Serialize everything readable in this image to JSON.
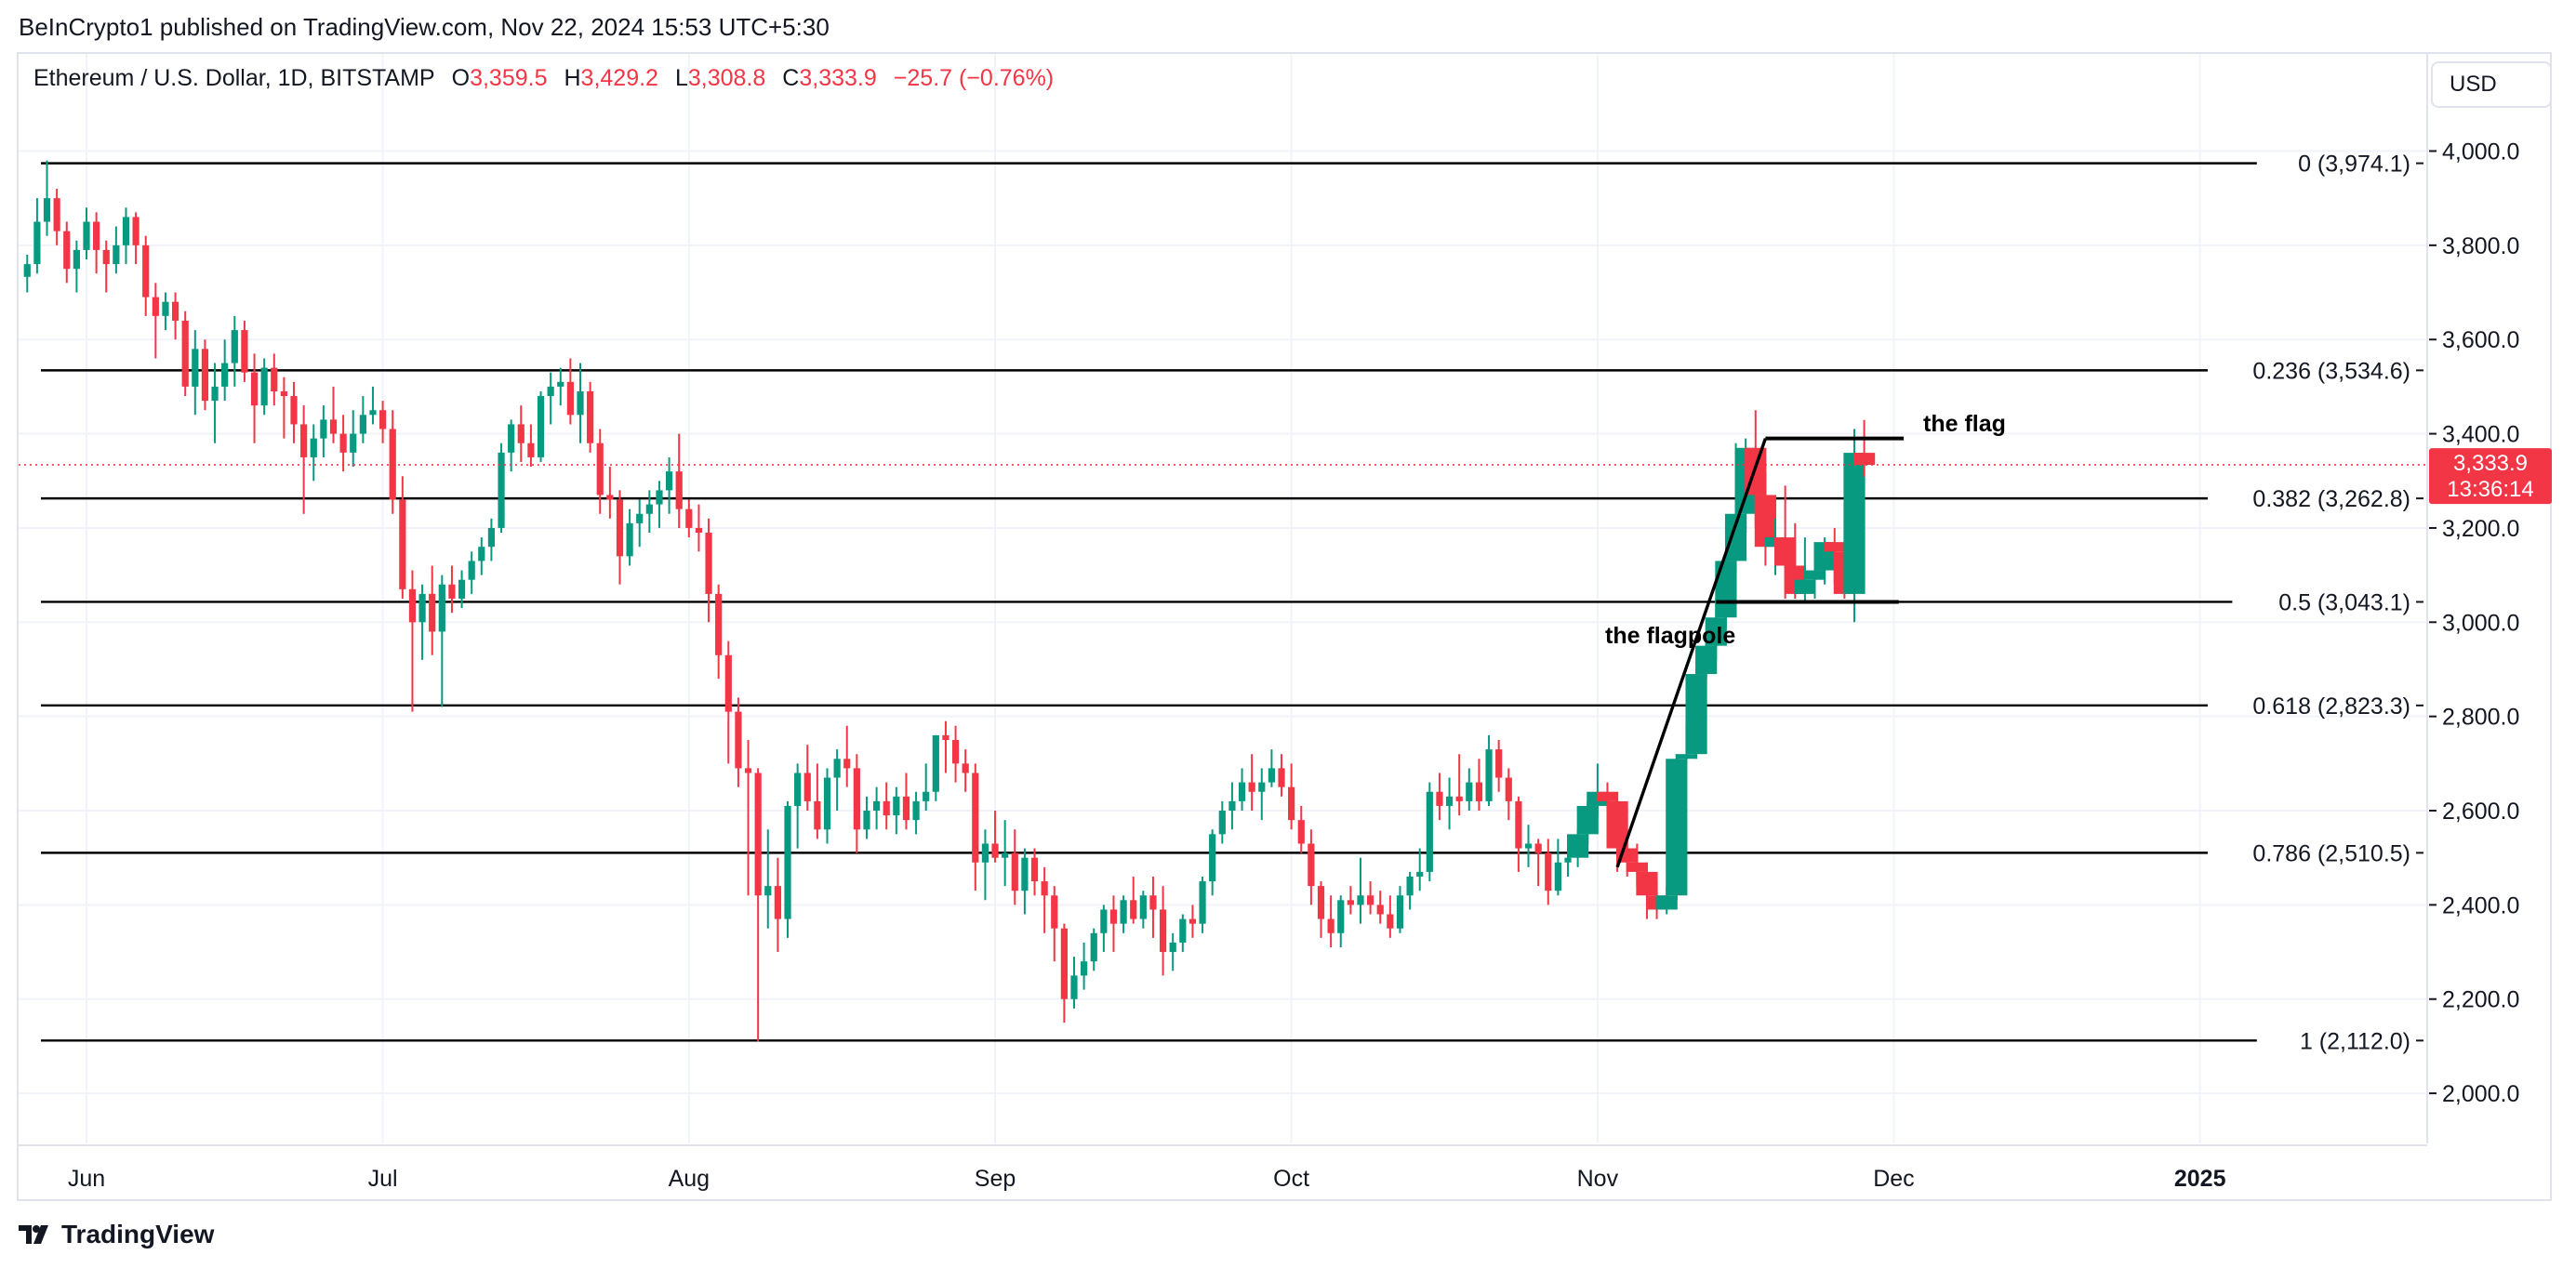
{
  "header": {
    "publisher": "BeInCrypto1 published on TradingView.com, Nov 22, 2024 15:53 UTC+5:30"
  },
  "legend": {
    "symbol": "Ethereum / U.S. Dollar, 1D, BITSTAMP",
    "open_label": "O",
    "open": "3,359.5",
    "high_label": "H",
    "high": "3,429.2",
    "low_label": "L",
    "low": "3,308.8",
    "close_label": "C",
    "close": "3,333.9",
    "change": "−25.7 (−0.76%)"
  },
  "currency_button": "USD",
  "footer": {
    "brand": "TradingView"
  },
  "colors": {
    "up": "#089981",
    "down": "#f23645",
    "grid": "#f0f3fa",
    "fib_line": "#000000"
  },
  "chart_data": {
    "type": "candlestick",
    "ylim": [
      1900,
      4100
    ],
    "y_ticks": [
      "2,000.0",
      "2,200.0",
      "2,400.0",
      "2,600.0",
      "2,800.0",
      "3,000.0",
      "3,200.0",
      "3,400.0",
      "3,600.0",
      "3,800.0",
      "4,000.0"
    ],
    "x_ticks": [
      {
        "label": "Jun",
        "day": 0
      },
      {
        "label": "Jul",
        "day": 30
      },
      {
        "label": "Aug",
        "day": 61
      },
      {
        "label": "Sep",
        "day": 92
      },
      {
        "label": "Oct",
        "day": 122
      },
      {
        "label": "Nov",
        "day": 153
      },
      {
        "label": "Dec",
        "day": 183
      },
      {
        "label": "2025",
        "day": 214
      }
    ],
    "first_day": -6,
    "candles": [
      [
        3733,
        3780,
        3700,
        3760
      ],
      [
        3760,
        3900,
        3740,
        3850
      ],
      [
        3850,
        3980,
        3820,
        3900
      ],
      [
        3900,
        3920,
        3800,
        3830
      ],
      [
        3830,
        3850,
        3720,
        3750
      ],
      [
        3750,
        3810,
        3700,
        3790
      ],
      [
        3790,
        3880,
        3770,
        3850
      ],
      [
        3850,
        3870,
        3740,
        3790
      ],
      [
        3790,
        3810,
        3700,
        3760
      ],
      [
        3760,
        3840,
        3740,
        3800
      ],
      [
        3800,
        3880,
        3760,
        3860
      ],
      [
        3860,
        3870,
        3760,
        3800
      ],
      [
        3800,
        3820,
        3650,
        3690
      ],
      [
        3690,
        3720,
        3560,
        3650
      ],
      [
        3650,
        3700,
        3620,
        3680
      ],
      [
        3680,
        3700,
        3600,
        3640
      ],
      [
        3640,
        3660,
        3480,
        3500
      ],
      [
        3500,
        3620,
        3440,
        3580
      ],
      [
        3580,
        3600,
        3450,
        3470
      ],
      [
        3470,
        3550,
        3380,
        3500
      ],
      [
        3500,
        3600,
        3470,
        3550
      ],
      [
        3550,
        3650,
        3500,
        3620
      ],
      [
        3620,
        3640,
        3510,
        3530
      ],
      [
        3530,
        3570,
        3380,
        3460
      ],
      [
        3460,
        3560,
        3440,
        3540
      ],
      [
        3540,
        3570,
        3460,
        3490
      ],
      [
        3490,
        3520,
        3390,
        3480
      ],
      [
        3480,
        3510,
        3380,
        3420
      ],
      [
        3420,
        3460,
        3230,
        3350
      ],
      [
        3350,
        3420,
        3300,
        3390
      ],
      [
        3390,
        3460,
        3350,
        3430
      ],
      [
        3430,
        3500,
        3380,
        3400
      ],
      [
        3400,
        3440,
        3320,
        3360
      ],
      [
        3360,
        3450,
        3330,
        3400
      ],
      [
        3400,
        3480,
        3380,
        3440
      ],
      [
        3440,
        3500,
        3420,
        3450
      ],
      [
        3450,
        3470,
        3380,
        3410
      ],
      [
        3410,
        3450,
        3230,
        3260
      ],
      [
        3260,
        3310,
        3050,
        3070
      ],
      [
        3070,
        3110,
        2810,
        3000
      ],
      [
        3000,
        3080,
        2920,
        3060
      ],
      [
        3060,
        3120,
        2930,
        2980
      ],
      [
        2980,
        3100,
        2820,
        3080
      ],
      [
        3080,
        3120,
        3020,
        3050
      ],
      [
        3050,
        3110,
        3030,
        3090
      ],
      [
        3090,
        3150,
        3060,
        3130
      ],
      [
        3130,
        3180,
        3100,
        3160
      ],
      [
        3160,
        3220,
        3130,
        3200
      ],
      [
        3200,
        3380,
        3190,
        3360
      ],
      [
        3360,
        3430,
        3320,
        3420
      ],
      [
        3420,
        3460,
        3340,
        3380
      ],
      [
        3380,
        3420,
        3330,
        3350
      ],
      [
        3350,
        3490,
        3340,
        3480
      ],
      [
        3480,
        3530,
        3420,
        3500
      ],
      [
        3500,
        3540,
        3460,
        3510
      ],
      [
        3510,
        3560,
        3420,
        3440
      ],
      [
        3440,
        3550,
        3380,
        3490
      ],
      [
        3490,
        3510,
        3360,
        3380
      ],
      [
        3380,
        3410,
        3230,
        3270
      ],
      [
        3270,
        3330,
        3220,
        3260
      ],
      [
        3260,
        3280,
        3080,
        3140
      ],
      [
        3140,
        3240,
        3120,
        3210
      ],
      [
        3210,
        3260,
        3160,
        3230
      ],
      [
        3230,
        3280,
        3190,
        3250
      ],
      [
        3250,
        3300,
        3200,
        3280
      ],
      [
        3280,
        3350,
        3230,
        3320
      ],
      [
        3320,
        3400,
        3200,
        3240
      ],
      [
        3240,
        3260,
        3180,
        3200
      ],
      [
        3200,
        3250,
        3150,
        3190
      ],
      [
        3190,
        3220,
        3000,
        3060
      ],
      [
        3060,
        3080,
        2880,
        2930
      ],
      [
        2930,
        2960,
        2700,
        2810
      ],
      [
        2810,
        2840,
        2650,
        2690
      ],
      [
        2690,
        2750,
        2420,
        2680
      ],
      [
        2680,
        2690,
        2110,
        2420
      ],
      [
        2420,
        2560,
        2350,
        2440
      ],
      [
        2440,
        2500,
        2300,
        2370
      ],
      [
        2370,
        2620,
        2330,
        2610
      ],
      [
        2610,
        2700,
        2520,
        2680
      ],
      [
        2680,
        2740,
        2600,
        2620
      ],
      [
        2620,
        2700,
        2540,
        2560
      ],
      [
        2560,
        2690,
        2530,
        2670
      ],
      [
        2670,
        2730,
        2600,
        2710
      ],
      [
        2710,
        2780,
        2650,
        2690
      ],
      [
        2690,
        2720,
        2510,
        2560
      ],
      [
        2560,
        2630,
        2540,
        2600
      ],
      [
        2600,
        2650,
        2560,
        2620
      ],
      [
        2620,
        2660,
        2560,
        2590
      ],
      [
        2590,
        2650,
        2550,
        2630
      ],
      [
        2630,
        2680,
        2560,
        2580
      ],
      [
        2580,
        2640,
        2550,
        2620
      ],
      [
        2620,
        2700,
        2600,
        2640
      ],
      [
        2640,
        2760,
        2620,
        2760
      ],
      [
        2760,
        2790,
        2680,
        2750
      ],
      [
        2750,
        2780,
        2660,
        2700
      ],
      [
        2700,
        2730,
        2640,
        2680
      ],
      [
        2680,
        2700,
        2430,
        2490
      ],
      [
        2490,
        2560,
        2410,
        2530
      ],
      [
        2530,
        2600,
        2490,
        2500
      ],
      [
        2500,
        2580,
        2440,
        2510
      ],
      [
        2510,
        2560,
        2400,
        2430
      ],
      [
        2430,
        2520,
        2380,
        2500
      ],
      [
        2500,
        2520,
        2420,
        2450
      ],
      [
        2450,
        2480,
        2340,
        2420
      ],
      [
        2420,
        2440,
        2280,
        2350
      ],
      [
        2350,
        2360,
        2150,
        2200
      ],
      [
        2200,
        2290,
        2180,
        2250
      ],
      [
        2250,
        2320,
        2220,
        2280
      ],
      [
        2280,
        2350,
        2260,
        2340
      ],
      [
        2340,
        2400,
        2300,
        2390
      ],
      [
        2390,
        2420,
        2300,
        2360
      ],
      [
        2360,
        2420,
        2340,
        2410
      ],
      [
        2410,
        2460,
        2360,
        2370
      ],
      [
        2370,
        2430,
        2350,
        2420
      ],
      [
        2420,
        2460,
        2330,
        2390
      ],
      [
        2390,
        2440,
        2250,
        2300
      ],
      [
        2300,
        2340,
        2260,
        2320
      ],
      [
        2320,
        2380,
        2300,
        2370
      ],
      [
        2370,
        2400,
        2330,
        2360
      ],
      [
        2360,
        2460,
        2340,
        2450
      ],
      [
        2450,
        2560,
        2420,
        2550
      ],
      [
        2550,
        2620,
        2530,
        2600
      ],
      [
        2600,
        2660,
        2560,
        2620
      ],
      [
        2620,
        2690,
        2600,
        2660
      ],
      [
        2660,
        2720,
        2600,
        2640
      ],
      [
        2640,
        2690,
        2580,
        2660
      ],
      [
        2660,
        2730,
        2650,
        2690
      ],
      [
        2690,
        2720,
        2630,
        2650
      ],
      [
        2650,
        2700,
        2560,
        2580
      ],
      [
        2580,
        2610,
        2510,
        2530
      ],
      [
        2530,
        2560,
        2400,
        2440
      ],
      [
        2440,
        2450,
        2330,
        2370
      ],
      [
        2370,
        2420,
        2310,
        2340
      ],
      [
        2340,
        2420,
        2310,
        2410
      ],
      [
        2410,
        2440,
        2380,
        2400
      ],
      [
        2400,
        2500,
        2360,
        2420
      ],
      [
        2420,
        2450,
        2380,
        2400
      ],
      [
        2400,
        2430,
        2360,
        2380
      ],
      [
        2380,
        2420,
        2330,
        2350
      ],
      [
        2350,
        2440,
        2340,
        2420
      ],
      [
        2420,
        2470,
        2390,
        2460
      ],
      [
        2460,
        2520,
        2430,
        2470
      ],
      [
        2470,
        2660,
        2450,
        2640
      ],
      [
        2640,
        2680,
        2580,
        2610
      ],
      [
        2610,
        2670,
        2560,
        2630
      ],
      [
        2630,
        2720,
        2590,
        2620
      ],
      [
        2620,
        2690,
        2600,
        2660
      ],
      [
        2660,
        2710,
        2600,
        2620
      ],
      [
        2620,
        2760,
        2610,
        2730
      ],
      [
        2730,
        2750,
        2640,
        2670
      ],
      [
        2670,
        2690,
        2580,
        2620
      ],
      [
        2620,
        2630,
        2470,
        2520
      ],
      [
        2520,
        2570,
        2480,
        2530
      ],
      [
        2530,
        2540,
        2440,
        2510
      ],
      [
        2510,
        2540,
        2400,
        2430
      ],
      [
        2430,
        2540,
        2420,
        2490
      ],
      [
        2490,
        2530,
        2460,
        2500
      ],
      [
        2500,
        2560,
        2480,
        2550
      ],
      [
        2550,
        2620,
        2530,
        2610
      ],
      [
        2610,
        2700,
        2590,
        2640
      ],
      [
        2640,
        2660,
        2580,
        2620
      ],
      [
        2620,
        2640,
        2470,
        2520
      ],
      [
        2520,
        2560,
        2460,
        2490
      ],
      [
        2490,
        2530,
        2440,
        2470
      ],
      [
        2470,
        2490,
        2370,
        2420
      ],
      [
        2420,
        2450,
        2370,
        2390
      ],
      [
        2390,
        2440,
        2380,
        2420
      ],
      [
        2420,
        2720,
        2410,
        2710
      ],
      [
        2710,
        2780,
        2700,
        2720
      ],
      [
        2720,
        2900,
        2710,
        2890
      ],
      [
        2890,
        2970,
        2880,
        2950
      ],
      [
        2950,
        3050,
        2920,
        3010
      ],
      [
        3010,
        3150,
        2990,
        3130
      ],
      [
        3130,
        3380,
        3100,
        3230
      ],
      [
        3230,
        3390,
        3190,
        3370
      ],
      [
        3370,
        3450,
        3200,
        3270
      ],
      [
        3270,
        3320,
        3120,
        3160
      ],
      [
        3160,
        3220,
        3100,
        3180
      ],
      [
        3180,
        3290,
        3050,
        3120
      ],
      [
        3120,
        3210,
        3050,
        3060
      ],
      [
        3060,
        3180,
        3040,
        3090
      ],
      [
        3090,
        3160,
        3050,
        3110
      ],
      [
        3110,
        3180,
        3080,
        3170
      ],
      [
        3170,
        3200,
        3080,
        3150
      ],
      [
        3150,
        3170,
        3050,
        3060
      ],
      [
        3060,
        3410,
        3000,
        3359.5
      ],
      [
        3359.5,
        3429.2,
        3308.8,
        3333.9
      ]
    ],
    "fib_levels": [
      {
        "ratio": "0",
        "price": 3974.1,
        "label": "0 (3,974.1)"
      },
      {
        "ratio": "0.236",
        "price": 3534.6,
        "label": "0.236 (3,534.6)"
      },
      {
        "ratio": "0.382",
        "price": 3262.8,
        "label": "0.382 (3,262.8)"
      },
      {
        "ratio": "0.5",
        "price": 3043.1,
        "label": "0.5 (3,043.1)"
      },
      {
        "ratio": "0.618",
        "price": 2823.3,
        "label": "0.618 (2,823.3)"
      },
      {
        "ratio": "0.786",
        "price": 2510.5,
        "label": "0.786 (2,510.5)"
      },
      {
        "ratio": "1",
        "price": 2112.0,
        "label": "1 (2,112.0)"
      }
    ],
    "annotations": {
      "flag_label": "the flag",
      "flagpole_label": "the flagpole",
      "flag_top": 3390,
      "flag_bottom": 3043,
      "pole_start": {
        "day": 155,
        "price": 2480
      },
      "pole_end": {
        "day": 170,
        "price": 3390
      }
    },
    "last_price": {
      "price": "3,333.9",
      "countdown": "13:36:14",
      "value": 3333.9
    }
  }
}
